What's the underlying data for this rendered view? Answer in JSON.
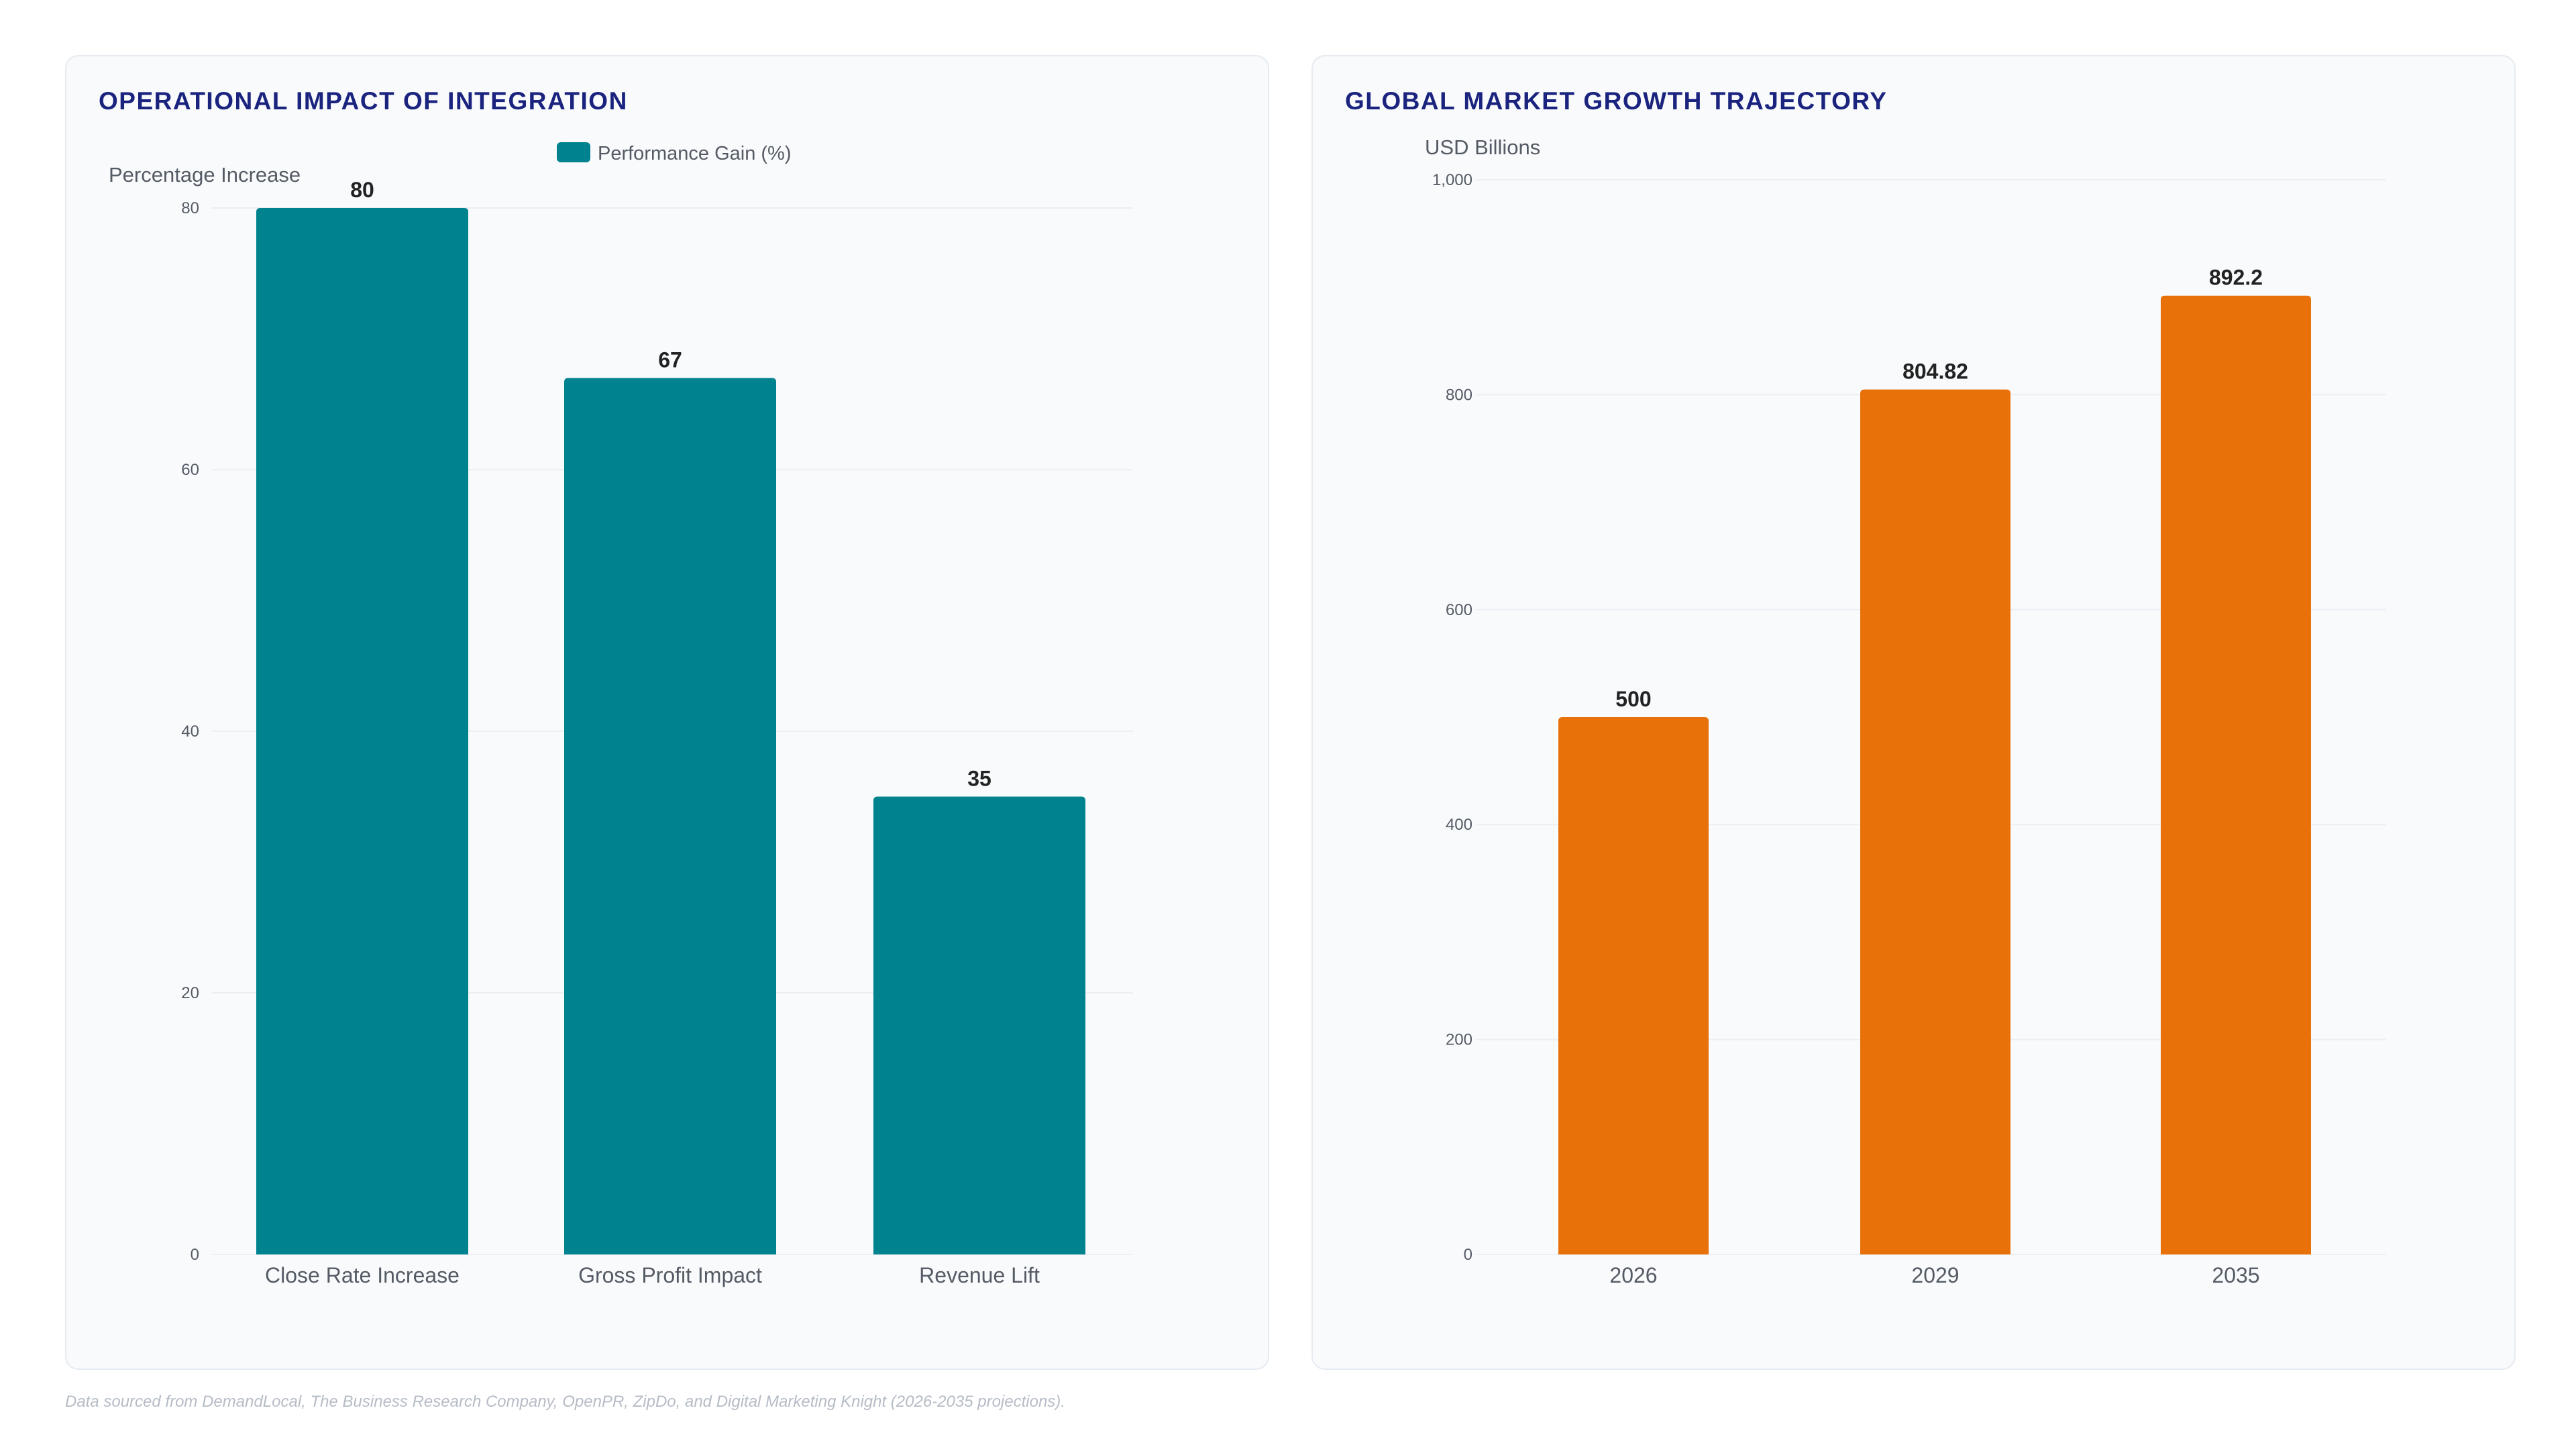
{
  "footnote": "Data sourced from DemandLocal, The Business Research Company, OpenPR, ZipDo, and Digital Marketing Knight (2026-2035 projections).",
  "colors": {
    "title": "#1a237e",
    "teal": "#00838f",
    "orange": "#e8710a",
    "grid": "#eceff3",
    "tick": "#555b64",
    "label": "#222222"
  },
  "chart_data": [
    {
      "type": "bar",
      "title": "OPERATIONAL IMPACT OF INTEGRATION",
      "ylabel": "Percentage Increase",
      "xlabel": "",
      "categories": [
        "Close Rate Increase",
        "Gross Profit Impact",
        "Revenue Lift"
      ],
      "series": [
        {
          "name": "Performance Gain (%)",
          "values": [
            80,
            67,
            35
          ]
        }
      ],
      "ylim": [
        0,
        80
      ],
      "yticks": [
        "0",
        "20",
        "40",
        "60",
        "80"
      ],
      "data_labels": [
        "80",
        "67",
        "35"
      ],
      "legend": "top",
      "grid": true,
      "color": "#00838f"
    },
    {
      "type": "bar",
      "title": "GLOBAL MARKET GROWTH TRAJECTORY",
      "ylabel": "USD Billions",
      "xlabel": "",
      "categories": [
        "2026",
        "2029",
        "2035"
      ],
      "series": [
        {
          "values": [
            500,
            804.82,
            892.2
          ]
        }
      ],
      "ylim": [
        0,
        1000
      ],
      "yticks": [
        "0",
        "200",
        "400",
        "600",
        "800",
        "1,000"
      ],
      "data_labels": [
        "500",
        "804.82",
        "892.2"
      ],
      "legend": "none",
      "grid": true,
      "color": "#e8710a"
    }
  ]
}
